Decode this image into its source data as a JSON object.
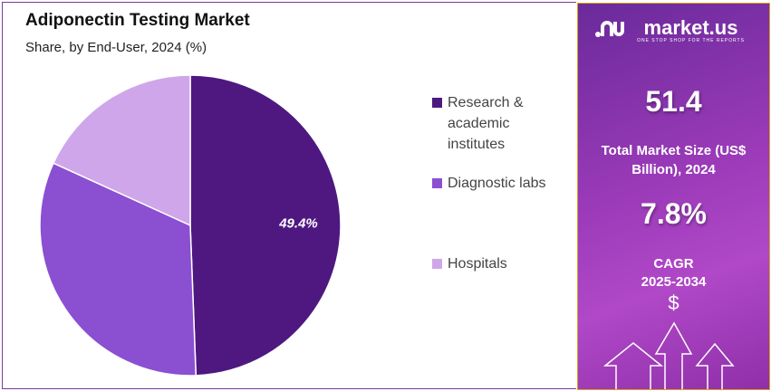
{
  "chart_data": {
    "type": "pie",
    "title": "Adiponectin Testing Market",
    "subtitle": "Share, by End-User, 2024 (%)",
    "slices": [
      {
        "label": "Research & academic institutes",
        "value": 49.4,
        "color": "#4e1880",
        "data_label": "49.4%"
      },
      {
        "label": "Diagnostic labs",
        "value": 32.4,
        "color": "#8b4fd2"
      },
      {
        "label": "Hospitals",
        "value": 18.2,
        "color": "#cfa6ea"
      }
    ],
    "legend_placement": "right"
  },
  "legend": [
    {
      "label": "Research & academic institutes"
    },
    {
      "label": "Diagnostic labs"
    },
    {
      "label": "Hospitals"
    }
  ],
  "side": {
    "brand": "market.us",
    "tagline": "ONE STOP SHOP FOR THE REPORTS",
    "market_size": "51.4",
    "market_size_label": "Total Market Size (US$ Billion), 2024",
    "cagr": "7.8%",
    "cagr_label": "CAGR",
    "cagr_period": "2025-2034",
    "currency_symbol": "$"
  }
}
